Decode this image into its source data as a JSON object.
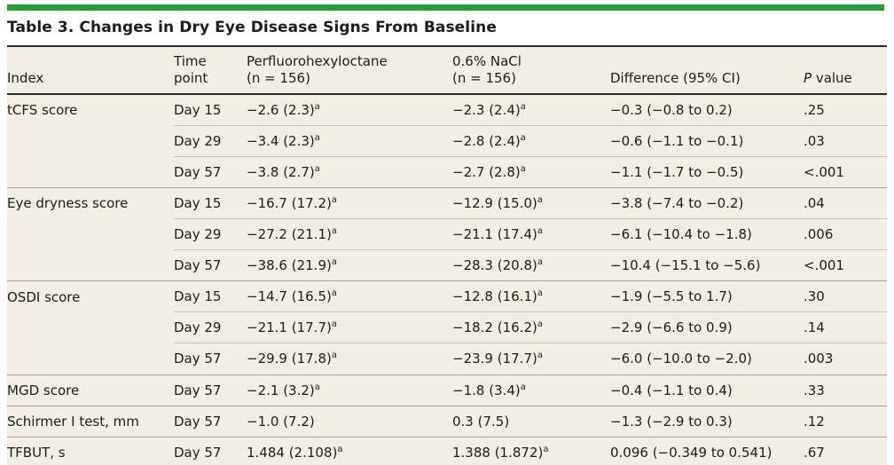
{
  "title": "Table 3. Changes in Dry Eye Disease Signs From Baseline",
  "colors": {
    "accent_green": "#2f9a3a",
    "table_background": "#f1eee2",
    "rule_dark": "#2a2a27",
    "row_line_light": "#c6c3b7",
    "row_line_group": "#a6a399",
    "text": "#1d1d1b"
  },
  "table": {
    "headers": {
      "index": "Index",
      "time_point": "Time point",
      "drug_name": "Perfluorohexyloctane",
      "drug_n": "(n = 156)",
      "nacl_name": "0.6% NaCl",
      "nacl_n": "(n = 156)",
      "difference": "Difference (95% CI)",
      "p_italic": "P",
      "p_rest": " value"
    },
    "rows": [
      {
        "index": "tCFS score",
        "time": "Day 15",
        "pfho": "−2.6 (2.3)",
        "pfho_sup": "a",
        "nacl": "−2.3 (2.4)",
        "nacl_sup": "a",
        "diff": "−0.3 (−0.8 to 0.2)",
        "p": ".25"
      },
      {
        "index": "",
        "time": "Day 29",
        "pfho": "−3.4 (2.3)",
        "pfho_sup": "a",
        "nacl": "−2.8 (2.4)",
        "nacl_sup": "a",
        "diff": "−0.6 (−1.1 to −0.1)",
        "p": ".03"
      },
      {
        "index": "",
        "time": "Day 57",
        "pfho": "−3.8 (2.7)",
        "pfho_sup": "a",
        "nacl": "−2.7 (2.8)",
        "nacl_sup": "a",
        "diff": "−1.1 (−1.7 to −0.5)",
        "p": "<.001"
      },
      {
        "index": "Eye dryness score",
        "time": "Day 15",
        "pfho": "−16.7 (17.2)",
        "pfho_sup": "a",
        "nacl": "−12.9 (15.0)",
        "nacl_sup": "a",
        "diff": "−3.8 (−7.4 to −0.2)",
        "p": ".04"
      },
      {
        "index": "",
        "time": "Day 29",
        "pfho": "−27.2 (21.1)",
        "pfho_sup": "a",
        "nacl": "−21.1 (17.4)",
        "nacl_sup": "a",
        "diff": "−6.1 (−10.4 to −1.8)",
        "p": ".006"
      },
      {
        "index": "",
        "time": "Day 57",
        "pfho": "−38.6 (21.9)",
        "pfho_sup": "a",
        "nacl": "−28.3 (20.8)",
        "nacl_sup": "a",
        "diff": "−10.4 (−15.1 to −5.6)",
        "p": "<.001"
      },
      {
        "index": "OSDI score",
        "time": "Day 15",
        "pfho": "−14.7 (16.5)",
        "pfho_sup": "a",
        "nacl": "−12.8 (16.1)",
        "nacl_sup": "a",
        "diff": "−1.9 (−5.5 to 1.7)",
        "p": ".30"
      },
      {
        "index": "",
        "time": "Day 29",
        "pfho": "−21.1 (17.7)",
        "pfho_sup": "a",
        "nacl": "−18.2 (16.2)",
        "nacl_sup": "a",
        "diff": "−2.9 (−6.6 to 0.9)",
        "p": ".14"
      },
      {
        "index": "",
        "time": "Day 57",
        "pfho": "−29.9 (17.8)",
        "pfho_sup": "a",
        "nacl": "−23.9 (17.7)",
        "nacl_sup": "a",
        "diff": "−6.0 (−10.0 to −2.0)",
        "p": ".003"
      },
      {
        "index": "MGD score",
        "time": "Day 57",
        "pfho": "−2.1 (3.2)",
        "pfho_sup": "a",
        "nacl": "−1.8 (3.4)",
        "nacl_sup": "a",
        "diff": "−0.4 (−1.1 to 0.4)",
        "p": ".33"
      },
      {
        "index": "Schirmer I test, mm",
        "time": "Day 57",
        "pfho": "−1.0 (7.2)",
        "pfho_sup": "",
        "nacl": "0.3 (7.5)",
        "nacl_sup": "",
        "diff": "−1.3 (−2.9 to 0.3)",
        "p": ".12"
      },
      {
        "index": "TFBUT, s",
        "time": "Day 57",
        "pfho": "1.484 (2.108)",
        "pfho_sup": "a",
        "nacl": "1.388 (1.872)",
        "nacl_sup": "a",
        "diff": "0.096 (−0.349 to 0.541)",
        "p": ".67"
      }
    ]
  }
}
